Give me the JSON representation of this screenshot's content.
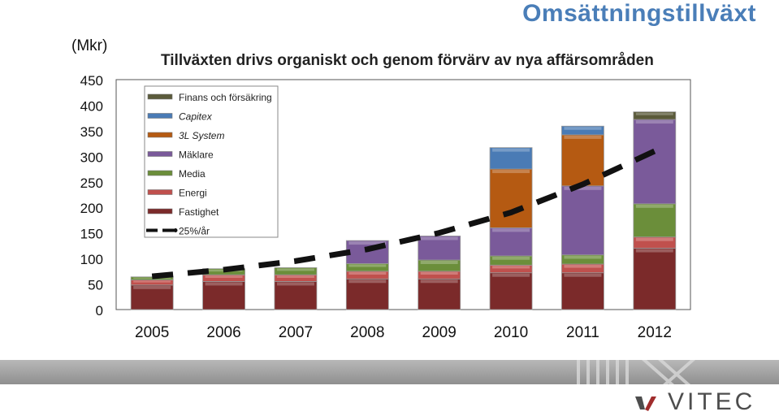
{
  "header": {
    "title": "Omsättningstillväxt",
    "subtitle": "Tillväxten drivs organiskt och genom förvärv av nya affärsområden",
    "unit": "(Mkr)"
  },
  "logo": {
    "text": "VITEC"
  },
  "colors": {
    "fastighet": "#7b2a2a",
    "energi": "#c0504d",
    "media": "#6b8e3a",
    "maklare": "#7a5a9a",
    "system3l": "#b55a12",
    "capitex": "#4a7bb5",
    "finans": "#5a5a3a",
    "trend": "#111111"
  },
  "chart_data": {
    "type": "bar",
    "stacked": true,
    "categories": [
      "2005",
      "2006",
      "2007",
      "2008",
      "2009",
      "2010",
      "2011",
      "2012"
    ],
    "ylim": [
      0,
      450
    ],
    "yticks": [
      "0",
      "50",
      "100",
      "150",
      "200",
      "250",
      "300",
      "350",
      "400",
      "450"
    ],
    "series": [
      {
        "name": "Fastighet",
        "key": "fastighet",
        "values": [
          48,
          55,
          55,
          60,
          60,
          72,
          72,
          120
        ]
      },
      {
        "name": "Energi",
        "key": "energi",
        "values": [
          10,
          13,
          13,
          15,
          15,
          15,
          17,
          22
        ]
      },
      {
        "name": "Media",
        "key": "media",
        "values": [
          6,
          12,
          14,
          15,
          22,
          18,
          18,
          65
        ]
      },
      {
        "name": "Mäklare",
        "key": "maklare",
        "values": [
          0,
          0,
          0,
          45,
          47,
          55,
          135,
          165
        ]
      },
      {
        "name": "3L System",
        "key": "system3l",
        "values": [
          0,
          0,
          0,
          0,
          0,
          115,
          100,
          0
        ]
      },
      {
        "name": "Capitex",
        "key": "capitex",
        "values": [
          0,
          0,
          0,
          0,
          0,
          42,
          17,
          0
        ]
      },
      {
        "name": "Finans och försäkring",
        "key": "finans",
        "values": [
          0,
          0,
          0,
          0,
          0,
          0,
          0,
          15
        ]
      }
    ],
    "trend": {
      "name": "25%/år",
      "values": [
        65,
        78,
        95,
        118,
        150,
        190,
        245,
        310
      ]
    },
    "legend": [
      "Finans och försäkring",
      "Capitex",
      "3L System",
      "Mäklare",
      "Media",
      "Energi",
      "Fastighet",
      "25%/år"
    ],
    "legend_placement": "top-left"
  }
}
